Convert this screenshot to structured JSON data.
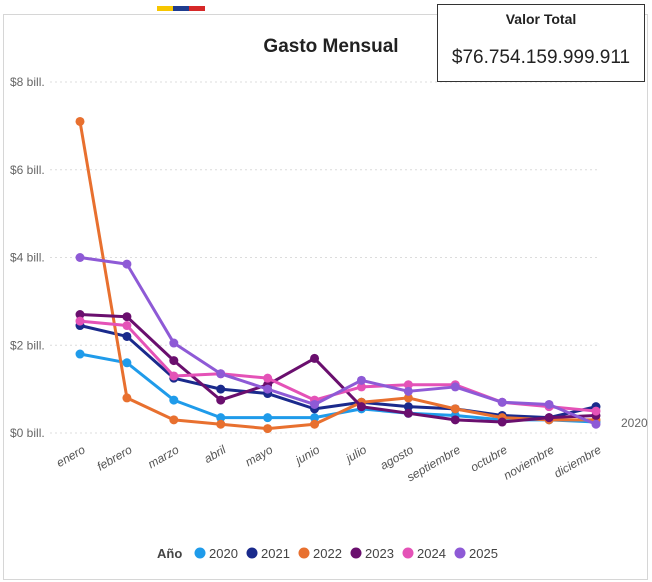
{
  "card": {
    "label": "Valor Total",
    "value": "$76.754.159.999.911"
  },
  "flag_colors": [
    "#f7c600",
    "#1f3c8f",
    "#d62828"
  ],
  "chart_data": {
    "type": "line",
    "title": "Gasto Mensual",
    "xlabel": "",
    "ylabel": "",
    "ylim": [
      0,
      8
    ],
    "yticks": [
      0,
      2,
      4,
      6,
      8
    ],
    "ytick_labels": [
      "$0 bill.",
      "$2 bill.",
      "$4 bill.",
      "$6 bill.",
      "$8 bill."
    ],
    "grid": true,
    "categories": [
      "enero",
      "febrero",
      "marzo",
      "abril",
      "mayo",
      "junio",
      "julio",
      "agosto",
      "septiembre",
      "octubre",
      "noviembre",
      "diciembre"
    ],
    "legend_title": "Año",
    "legend_position": "bottom",
    "end_label": "2020",
    "series": [
      {
        "name": "2020",
        "color": "#1f9bea",
        "values": [
          1.8,
          1.6,
          0.75,
          0.35,
          0.35,
          0.35,
          0.55,
          0.45,
          0.4,
          0.3,
          0.3,
          0.25
        ]
      },
      {
        "name": "2021",
        "color": "#1a2a8c",
        "values": [
          2.45,
          2.2,
          1.25,
          1.0,
          0.9,
          0.55,
          0.7,
          0.6,
          0.55,
          0.4,
          0.35,
          0.6
        ]
      },
      {
        "name": "2022",
        "color": "#e8702f",
        "values": [
          7.1,
          0.8,
          0.3,
          0.2,
          0.1,
          0.2,
          0.7,
          0.8,
          0.55,
          0.35,
          0.3,
          0.3
        ]
      },
      {
        "name": "2023",
        "color": "#6a0f6e",
        "values": [
          2.7,
          2.65,
          1.65,
          0.75,
          1.1,
          1.7,
          0.6,
          0.45,
          0.3,
          0.25,
          0.35,
          0.4
        ]
      },
      {
        "name": "2024",
        "color": "#e452b7",
        "values": [
          2.55,
          2.45,
          1.3,
          1.35,
          1.25,
          0.75,
          1.05,
          1.1,
          1.1,
          0.7,
          0.6,
          0.5
        ]
      },
      {
        "name": "2025",
        "color": "#8e5ad6",
        "values": [
          4.0,
          3.85,
          2.05,
          1.35,
          1.0,
          0.65,
          1.2,
          0.95,
          1.05,
          0.7,
          0.65,
          0.2
        ]
      }
    ]
  }
}
